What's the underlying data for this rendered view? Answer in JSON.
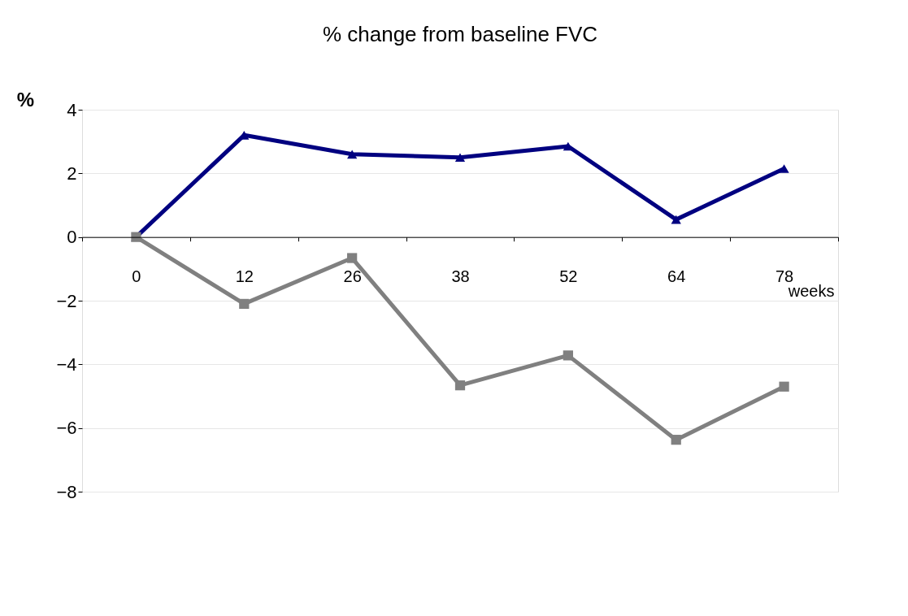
{
  "chart_data": {
    "type": "line",
    "title": "% change from baseline FVC",
    "ylabel": "%",
    "xlabel": "weeks",
    "categories": [
      "0",
      "12",
      "26",
      "38",
      "52",
      "64",
      "78"
    ],
    "series": [
      {
        "color": "#000080",
        "marker": "triangle",
        "values": [
          0,
          3.2,
          2.6,
          2.5,
          2.85,
          0.55,
          2.15
        ]
      },
      {
        "color": "#808080",
        "marker": "square",
        "values": [
          0,
          -2.1,
          -0.66,
          -4.66,
          -3.72,
          -6.37,
          -4.7
        ]
      }
    ],
    "ylim": [
      -8,
      4
    ],
    "yticks": [
      -8,
      -6,
      -4,
      -2,
      0,
      2,
      4
    ],
    "grid": "y",
    "line_style": "solid"
  }
}
